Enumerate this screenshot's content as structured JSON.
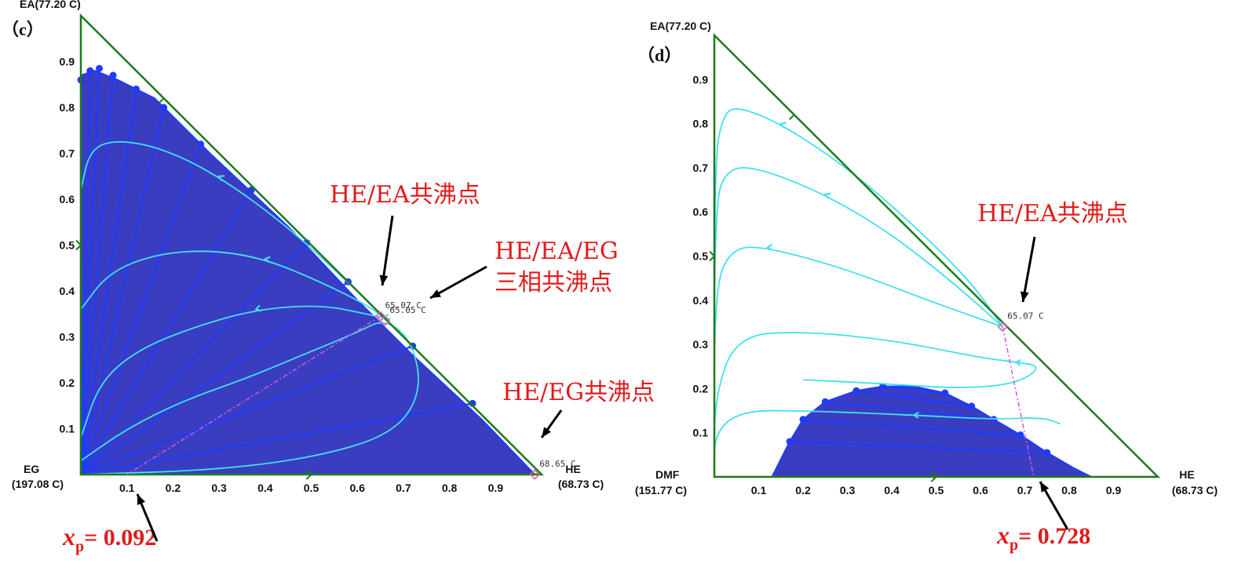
{
  "chart_data": [
    {
      "type": "ternary",
      "panel": "（c）",
      "vertices": {
        "top": "EA(77.20 C)",
        "left_name": "EG",
        "left_temp": "(197.08 C)",
        "right_name": "HE",
        "right_temp": "(68.73 C)"
      },
      "ticks": {
        "x": [
          "0.1",
          "0.2",
          "0.3",
          "0.4",
          "0.5",
          "0.6",
          "0.7",
          "0.8",
          "0.9"
        ],
        "y": [
          "0.1",
          "0.2",
          "0.3",
          "0.4",
          "0.5",
          "0.6",
          "0.7",
          "0.8",
          "0.9"
        ]
      },
      "points": [
        {
          "label": "65.07 C",
          "he": 0.65,
          "ea": 0.345
        },
        {
          "label": "65.05 C",
          "he": 0.66,
          "ea": 0.335
        },
        {
          "label": "68.65 C",
          "he": 0.985,
          "ea": 0.0
        }
      ],
      "two_phase_envelope": [
        [
          0.0,
          0.7
        ],
        [
          0.0,
          0.87
        ],
        [
          0.03,
          0.88
        ],
        [
          0.08,
          0.86
        ],
        [
          0.16,
          0.82
        ],
        [
          0.28,
          0.7
        ],
        [
          0.45,
          0.54
        ],
        [
          0.6,
          0.38
        ],
        [
          0.72,
          0.26
        ],
        [
          0.87,
          0.12
        ],
        [
          0.985,
          0.0
        ],
        [
          0.0,
          0.0
        ]
      ],
      "tie_lines": [
        [
          [
            0.0,
            0.0
          ],
          [
            0.0,
            0.86
          ]
        ],
        [
          [
            0.0,
            0.0
          ],
          [
            0.02,
            0.88
          ]
        ],
        [
          [
            0.0,
            0.0
          ],
          [
            0.04,
            0.885
          ]
        ],
        [
          [
            0.0,
            0.0
          ],
          [
            0.07,
            0.87
          ]
        ],
        [
          [
            0.0,
            0.0
          ],
          [
            0.12,
            0.84
          ]
        ],
        [
          [
            0.0,
            0.0
          ],
          [
            0.18,
            0.8
          ]
        ],
        [
          [
            0.0,
            0.0
          ],
          [
            0.26,
            0.72
          ]
        ],
        [
          [
            0.0,
            0.0
          ],
          [
            0.37,
            0.62
          ]
        ],
        [
          [
            0.0,
            0.0
          ],
          [
            0.49,
            0.505
          ]
        ],
        [
          [
            0.0,
            0.0
          ],
          [
            0.58,
            0.42
          ]
        ],
        [
          [
            0.0,
            0.0
          ],
          [
            0.72,
            0.28
          ]
        ],
        [
          [
            0.0,
            0.0
          ],
          [
            0.85,
            0.155
          ]
        ]
      ],
      "residue_curves": [
        [
          [
            0.0,
            0.62
          ],
          [
            0.02,
            0.71
          ],
          [
            0.08,
            0.73
          ],
          [
            0.18,
            0.71
          ],
          [
            0.3,
            0.65
          ],
          [
            0.45,
            0.54
          ],
          [
            0.6,
            0.4
          ],
          [
            0.66,
            0.34
          ]
        ],
        [
          [
            0.0,
            0.36
          ],
          [
            0.06,
            0.44
          ],
          [
            0.16,
            0.48
          ],
          [
            0.28,
            0.49
          ],
          [
            0.4,
            0.47
          ],
          [
            0.52,
            0.42
          ],
          [
            0.62,
            0.37
          ],
          [
            0.66,
            0.34
          ]
        ],
        [
          [
            0.0,
            0.08
          ],
          [
            0.04,
            0.2
          ],
          [
            0.12,
            0.27
          ],
          [
            0.24,
            0.32
          ],
          [
            0.38,
            0.36
          ],
          [
            0.52,
            0.37
          ],
          [
            0.62,
            0.35
          ],
          [
            0.66,
            0.34
          ]
        ],
        [
          [
            0.0,
            0.03
          ],
          [
            0.1,
            0.1
          ],
          [
            0.22,
            0.16
          ],
          [
            0.36,
            0.21
          ],
          [
            0.48,
            0.26
          ],
          [
            0.6,
            0.31
          ],
          [
            0.66,
            0.34
          ],
          [
            0.72,
            0.29
          ],
          [
            0.74,
            0.18
          ],
          [
            0.68,
            0.09
          ],
          [
            0.52,
            0.04
          ],
          [
            0.3,
            0.01
          ],
          [
            0.0,
            0.0
          ]
        ]
      ],
      "annotations": [
        {
          "text": "HE/EA共沸点",
          "target": "65.07 C"
        },
        {
          "text": "HE/EA/EG",
          "text2": "三相共沸点",
          "target": "65.05 C"
        },
        {
          "text": "HE/EG共沸点",
          "target": "68.65 C"
        }
      ],
      "xp_label": "x",
      "xp_sub": "p",
      "xp_value": "= 0.092"
    },
    {
      "type": "ternary",
      "panel": "（d）",
      "vertices": {
        "top": "EA(77.20 C)",
        "left_name": "DMF",
        "left_temp": "(151.77 C)",
        "right_name": "HE",
        "right_temp": "(68.73 C)"
      },
      "ticks": {
        "x": [
          "0.1",
          "0.2",
          "0.3",
          "0.4",
          "0.5",
          "0.6",
          "0.7",
          "0.8",
          "0.9"
        ],
        "y": [
          "0.1",
          "0.2",
          "0.3",
          "0.4",
          "0.5",
          "0.6",
          "0.7",
          "0.8",
          "0.9"
        ]
      },
      "points": [
        {
          "label": "65.07 C",
          "he": 0.65,
          "ea": 0.34
        }
      ],
      "two_phase_envelope": [
        [
          0.13,
          0.0
        ],
        [
          0.17,
          0.08
        ],
        [
          0.2,
          0.13
        ],
        [
          0.25,
          0.17
        ],
        [
          0.32,
          0.195
        ],
        [
          0.38,
          0.205
        ],
        [
          0.45,
          0.205
        ],
        [
          0.52,
          0.19
        ],
        [
          0.58,
          0.16
        ],
        [
          0.63,
          0.13
        ],
        [
          0.69,
          0.095
        ],
        [
          0.75,
          0.055
        ],
        [
          0.81,
          0.02
        ],
        [
          0.85,
          0.0
        ]
      ],
      "tie_lines": [
        [
          [
            0.17,
            0.08
          ],
          [
            0.75,
            0.055
          ]
        ],
        [
          [
            0.2,
            0.13
          ],
          [
            0.69,
            0.095
          ]
        ],
        [
          [
            0.25,
            0.17
          ],
          [
            0.63,
            0.13
          ]
        ],
        [
          [
            0.32,
            0.195
          ],
          [
            0.58,
            0.16
          ]
        ],
        [
          [
            0.38,
            0.205
          ],
          [
            0.52,
            0.19
          ]
        ]
      ],
      "residue_curves": [
        [
          [
            0.0,
            0.0
          ],
          [
            0.0,
            0.72
          ],
          [
            0.02,
            0.82
          ],
          [
            0.05,
            0.84
          ],
          [
            0.15,
            0.8
          ],
          [
            0.3,
            0.7
          ],
          [
            0.45,
            0.57
          ],
          [
            0.58,
            0.44
          ],
          [
            0.65,
            0.34
          ]
        ],
        [
          [
            0.0,
            0.0
          ],
          [
            0.0,
            0.62
          ],
          [
            0.03,
            0.7
          ],
          [
            0.1,
            0.7
          ],
          [
            0.25,
            0.64
          ],
          [
            0.4,
            0.55
          ],
          [
            0.55,
            0.43
          ],
          [
            0.65,
            0.34
          ]
        ],
        [
          [
            0.0,
            0.0
          ],
          [
            0.0,
            0.43
          ],
          [
            0.04,
            0.52
          ],
          [
            0.12,
            0.52
          ],
          [
            0.3,
            0.47
          ],
          [
            0.48,
            0.4
          ],
          [
            0.65,
            0.34
          ]
        ],
        [
          [
            0.0,
            0.0
          ],
          [
            0.0,
            0.18
          ],
          [
            0.05,
            0.32
          ],
          [
            0.2,
            0.33
          ],
          [
            0.4,
            0.31
          ],
          [
            0.6,
            0.27
          ],
          [
            0.68,
            0.26
          ],
          [
            0.74,
            0.25
          ],
          [
            0.68,
            0.21
          ],
          [
            0.55,
            0.2
          ],
          [
            0.4,
            0.21
          ],
          [
            0.2,
            0.22
          ]
        ],
        [
          [
            0.0,
            0.0
          ],
          [
            0.0,
            0.1
          ],
          [
            0.06,
            0.15
          ],
          [
            0.2,
            0.15
          ],
          [
            0.45,
            0.14
          ],
          [
            0.63,
            0.13
          ],
          [
            0.74,
            0.135
          ],
          [
            0.78,
            0.12
          ]
        ]
      ],
      "annotations": [
        {
          "text": "HE/EA共沸点",
          "target": "65.07 C"
        }
      ],
      "xp_label": "x",
      "xp_sub": "p",
      "xp_value": "= 0.728"
    }
  ],
  "colors": {
    "envelope": "#3b3dc0",
    "tie": "#1f3bff",
    "curve": "#41e1ef",
    "frame": "#1d7a1d",
    "red": "#e01b1b"
  }
}
